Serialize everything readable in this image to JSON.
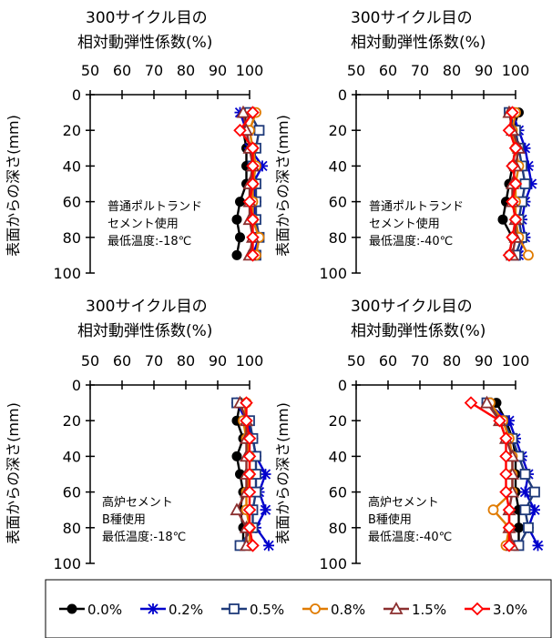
{
  "figure": {
    "legend": {
      "placement": "bottom",
      "entries": [
        "0.0%",
        "0.2%",
        "0.5%",
        "0.8%",
        "1.5%",
        "3.0%"
      ]
    }
  },
  "chart_data": [
    {
      "type": "line",
      "orientation": "depth-profile",
      "title": "300サイクル目の\n相対動弾性係数(%)",
      "title_lines": [
        "300サイクル目の",
        "相対動弾性係数(%)"
      ],
      "xlabel": "300サイクル目の相対動弾性係数(%)",
      "ylabel": "表面からの深さ(mm)",
      "xlim": [
        50,
        100
      ],
      "ylim": [
        0,
        100
      ],
      "x_axis_position": "top",
      "y_inverted": true,
      "xticks": [
        50,
        60,
        70,
        80,
        90,
        100
      ],
      "yticks": [
        0,
        20,
        40,
        60,
        80,
        100
      ],
      "annotation": [
        "普通ポルトランド",
        "セメント使用",
        "最低温度:-18℃"
      ],
      "depth": [
        10,
        20,
        30,
        40,
        50,
        60,
        70,
        80,
        90
      ],
      "series": [
        {
          "name": "0.0%",
          "color": "#000000",
          "marker": "circle",
          "values": [
            99,
            98,
            99,
            99,
            99,
            97,
            96,
            97,
            96
          ]
        },
        {
          "name": "0.2%",
          "color": "#0000cc",
          "marker": "star",
          "values": [
            97,
            99,
            100,
            104,
            101,
            102,
            101,
            103,
            101
          ]
        },
        {
          "name": "0.5%",
          "color": "#1f3a7a",
          "marker": "square",
          "values": [
            100,
            103,
            102,
            101,
            102,
            102,
            102,
            103,
            102
          ]
        },
        {
          "name": "0.8%",
          "color": "#e07b00",
          "marker": "circle-open",
          "values": [
            102,
            100,
            101,
            102,
            101,
            101,
            101,
            103,
            102
          ]
        },
        {
          "name": "1.5%",
          "color": "#8b2f2f",
          "marker": "triangle-open",
          "values": [
            98,
            99,
            100,
            101,
            100,
            100,
            100,
            101,
            100
          ]
        },
        {
          "name": "3.0%",
          "color": "#ff0000",
          "marker": "diamond-open",
          "values": [
            101,
            97,
            101,
            101,
            101,
            100,
            101,
            101,
            101
          ]
        }
      ]
    },
    {
      "type": "line",
      "orientation": "depth-profile",
      "title": "300サイクル目の\n相対動弾性係数(%)",
      "title_lines": [
        "300サイクル目の",
        "相対動弾性係数(%)"
      ],
      "xlabel": "300サイクル目の相対動弾性係数(%)",
      "ylabel": "表面からの深さ(mm)",
      "xlim": [
        50,
        100
      ],
      "ylim": [
        0,
        100
      ],
      "x_axis_position": "top",
      "y_inverted": true,
      "xticks": [
        50,
        60,
        70,
        80,
        90,
        100
      ],
      "yticks": [
        0,
        20,
        40,
        60,
        80,
        100
      ],
      "annotation": [
        "普通ポルトランド",
        "セメント使用",
        "最低温度:-40℃"
      ],
      "depth": [
        10,
        20,
        30,
        40,
        50,
        60,
        70,
        80,
        90
      ],
      "series": [
        {
          "name": "0.0%",
          "color": "#000000",
          "marker": "circle",
          "values": [
            101,
            99,
            100,
            99,
            98,
            97,
            96,
            99,
            98
          ]
        },
        {
          "name": "0.2%",
          "color": "#0000cc",
          "marker": "star",
          "values": [
            99,
            101,
            103,
            104,
            105,
            103,
            102,
            103,
            101
          ]
        },
        {
          "name": "0.5%",
          "color": "#1f3a7a",
          "marker": "square",
          "values": [
            98,
            100,
            101,
            102,
            103,
            102,
            101,
            102,
            100
          ]
        },
        {
          "name": "0.8%",
          "color": "#e07b00",
          "marker": "circle-open",
          "values": [
            100,
            99,
            100,
            101,
            100,
            100,
            100,
            101,
            104
          ]
        },
        {
          "name": "1.5%",
          "color": "#8b2f2f",
          "marker": "triangle-open",
          "values": [
            98,
            99,
            101,
            100,
            99,
            99,
            100,
            100,
            99
          ]
        },
        {
          "name": "3.0%",
          "color": "#ff0000",
          "marker": "diamond-open",
          "values": [
            99,
            98,
            100,
            99,
            100,
            99,
            100,
            99,
            98
          ]
        }
      ]
    },
    {
      "type": "line",
      "orientation": "depth-profile",
      "title": "300サイクル目の\n相対動弾性係数(%)",
      "title_lines": [
        "300サイクル目の",
        "相対動弾性係数(%)"
      ],
      "xlabel": "300サイクル目の相対動弾性係数(%)",
      "ylabel": "表面からの深さ(mm)",
      "xlim": [
        50,
        100
      ],
      "ylim": [
        0,
        100
      ],
      "x_axis_position": "top",
      "y_inverted": true,
      "xticks": [
        50,
        60,
        70,
        80,
        90,
        100
      ],
      "yticks": [
        0,
        20,
        40,
        60,
        80,
        100
      ],
      "annotation": [
        "高炉セメント",
        "B種使用",
        "最低温度:-18℃"
      ],
      "depth": [
        10,
        20,
        30,
        40,
        50,
        60,
        70,
        80,
        90
      ],
      "series": [
        {
          "name": "0.0%",
          "color": "#000000",
          "marker": "circle",
          "values": [
            97,
            96,
            98,
            96,
            97,
            98,
            97,
            98,
            98
          ]
        },
        {
          "name": "0.2%",
          "color": "#0000cc",
          "marker": "star",
          "values": [
            96,
            99,
            101,
            102,
            105,
            103,
            105,
            102,
            106
          ]
        },
        {
          "name": "0.5%",
          "color": "#1f3a7a",
          "marker": "square",
          "values": [
            96,
            100,
            101,
            102,
            102,
            102,
            101,
            101,
            97
          ]
        },
        {
          "name": "0.8%",
          "color": "#e07b00",
          "marker": "circle-open",
          "values": [
            99,
            98,
            99,
            100,
            100,
            99,
            99,
            100,
            100
          ]
        },
        {
          "name": "1.5%",
          "color": "#8b2f2f",
          "marker": "triangle-open",
          "values": [
            97,
            99,
            99,
            99,
            99,
            99,
            96,
            99,
            99
          ]
        },
        {
          "name": "3.0%",
          "color": "#ff0000",
          "marker": "diamond-open",
          "values": [
            99,
            99,
            100,
            100,
            100,
            100,
            100,
            100,
            101
          ]
        }
      ]
    },
    {
      "type": "line",
      "orientation": "depth-profile",
      "title": "300サイクル目の\n相対動弾性係数(%)",
      "title_lines": [
        "300サイクル目の",
        "相対動弾性係数(%)"
      ],
      "xlabel": "300サイクル目の相対動弾性係数(%)",
      "ylabel": "表面からの深さ(mm)",
      "xlim": [
        50,
        100
      ],
      "ylim": [
        0,
        100
      ],
      "x_axis_position": "top",
      "y_inverted": true,
      "xticks": [
        50,
        60,
        70,
        80,
        90,
        100
      ],
      "yticks": [
        0,
        20,
        40,
        60,
        80,
        100
      ],
      "annotation": [
        "高炉セメント",
        "B種使用",
        "最低温度:-40℃"
      ],
      "depth": [
        10,
        20,
        30,
        40,
        50,
        60,
        70,
        80,
        90
      ],
      "series": [
        {
          "name": "0.0%",
          "color": "#000000",
          "marker": "circle",
          "values": [
            94,
            97,
            99,
            100,
            100,
            100,
            101,
            101,
            101
          ]
        },
        {
          "name": "0.2%",
          "color": "#0000cc",
          "marker": "star",
          "values": [
            91,
            98,
            100,
            102,
            104,
            103,
            106,
            104,
            107
          ]
        },
        {
          "name": "0.5%",
          "color": "#1f3a7a",
          "marker": "square",
          "values": [
            91,
            96,
            99,
            101,
            103,
            106,
            103,
            104,
            101
          ]
        },
        {
          "name": "0.8%",
          "color": "#e07b00",
          "marker": "circle-open",
          "values": [
            92,
            96,
            98,
            99,
            99,
            99,
            93,
            98,
            97
          ]
        },
        {
          "name": "1.5%",
          "color": "#8b2f2f",
          "marker": "triangle-open",
          "values": [
            91,
            95,
            97,
            99,
            99,
            99,
            98,
            98,
            99
          ]
        },
        {
          "name": "3.0%",
          "color": "#ff0000",
          "marker": "diamond-open",
          "values": [
            86,
            95,
            97,
            97,
            97,
            97,
            98,
            98,
            98
          ]
        }
      ]
    }
  ]
}
